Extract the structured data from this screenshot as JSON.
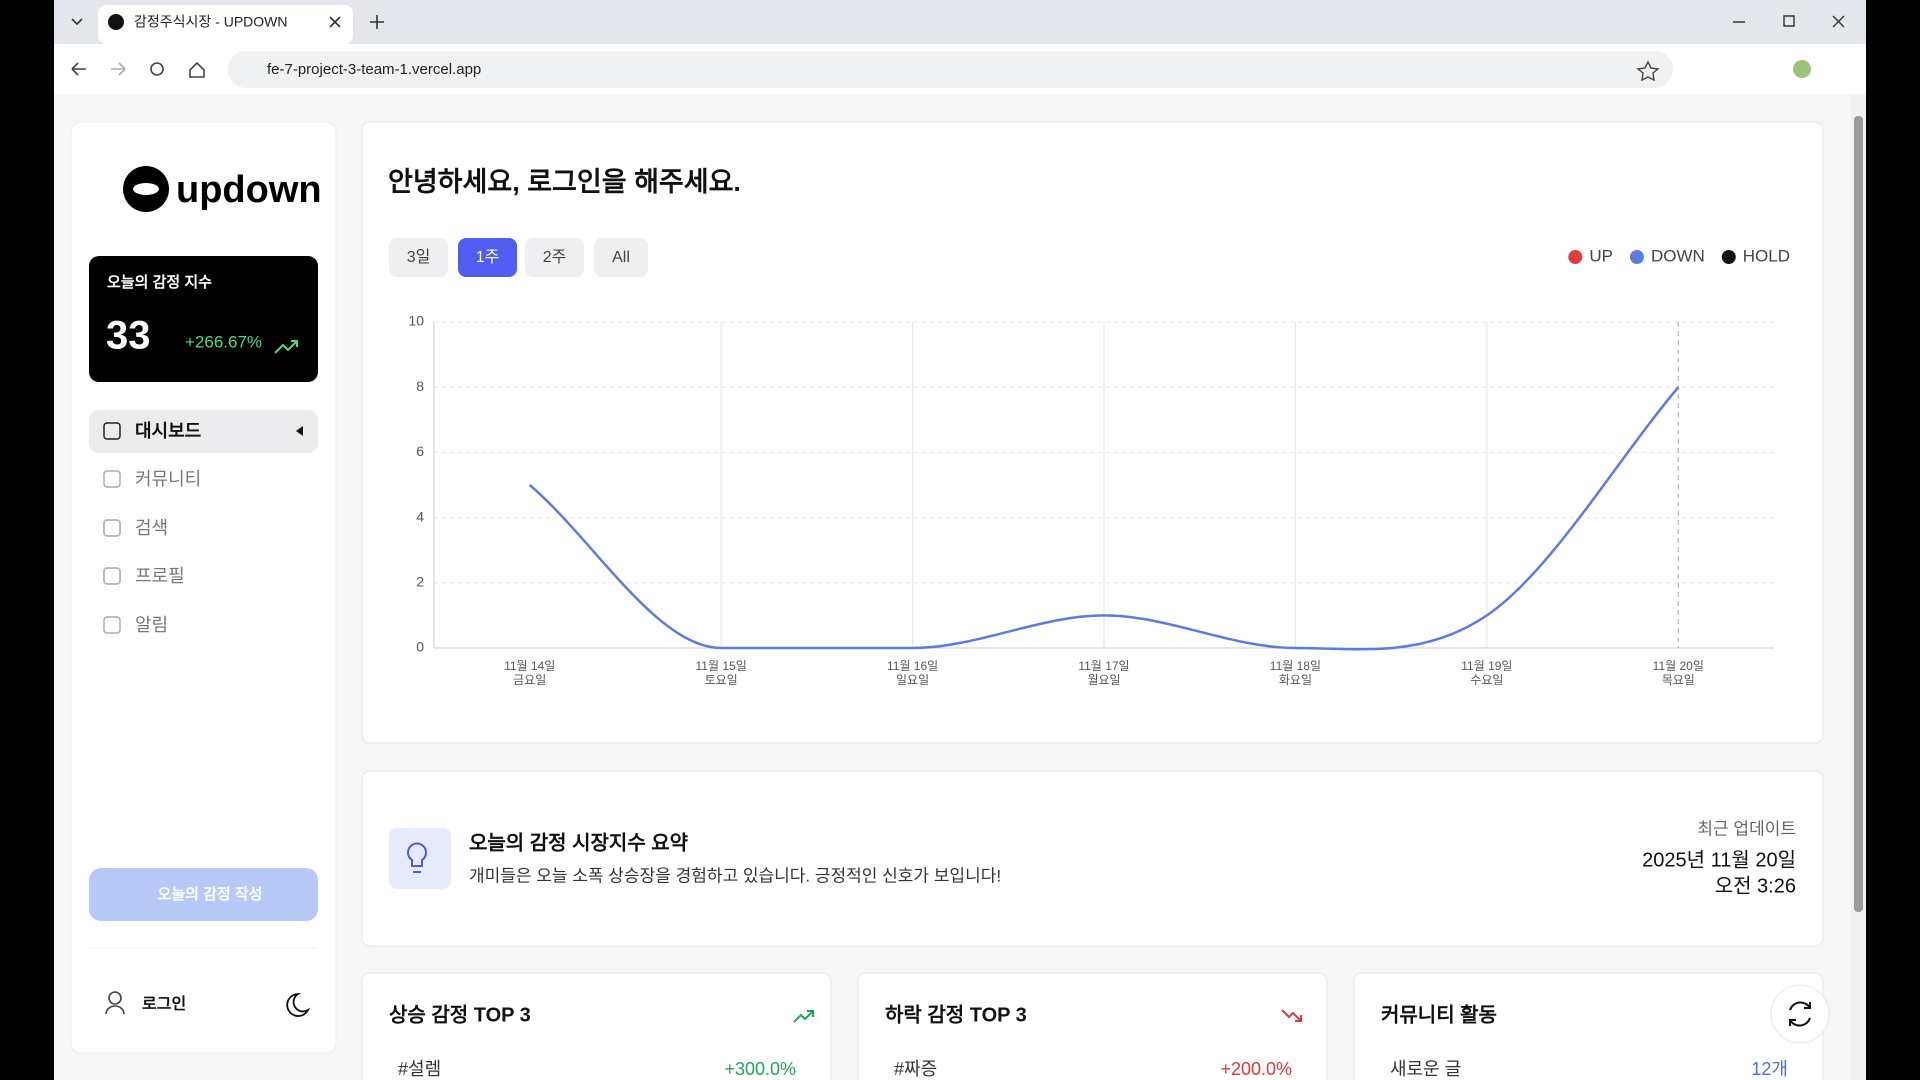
{
  "browser": {
    "tab_title": "감정주식시장 - UPDOWN",
    "url": "fe-7-project-3-team-1.vercel.app"
  },
  "sidebar": {
    "logo": "updown",
    "index_card": {
      "title": "오늘의 감정 지수",
      "value": 33,
      "change": "+266.67%"
    },
    "nav": [
      "대시보드",
      "커뮤니티",
      "검색",
      "프로필",
      "알림"
    ],
    "active_nav": 0,
    "write_button": "오늘의 감정 작성",
    "login": "로그인"
  },
  "main": {
    "greeting": "안녕하세요, 로그인을 해주세요.",
    "ranges": [
      "3일",
      "1주",
      "2주",
      "All"
    ],
    "active_range": 1,
    "summary": {
      "title": "오늘의 감정 시장지수 요약",
      "text": "개미들은 오늘 소폭 상승장을 경험하고 있습니다. 긍정적인 신호가 보입니다!",
      "updated_label": "최근 업데이트",
      "date": "2025년 11월 20일",
      "time": "오전 3:26"
    },
    "cards": [
      {
        "title": "상승 감정 TOP 3",
        "rows": [
          {
            "label": "#설렘",
            "value": "+300.0%"
          }
        ]
      },
      {
        "title": "하락 감정 TOP 3",
        "rows": [
          {
            "label": "#짜증",
            "value": "+200.0%"
          }
        ]
      },
      {
        "title": "커뮤니티 활동",
        "rows": [
          {
            "label": "새로운 글",
            "value": "12개"
          }
        ]
      }
    ]
  },
  "chart_data": {
    "type": "line",
    "categories": [
      "11월 14일",
      "11월 15일",
      "11월 16일",
      "11월 17일",
      "11월 18일",
      "11월 19일",
      "11월 20일"
    ],
    "category_sublabels": [
      "금요일",
      "토요일",
      "일요일",
      "월요일",
      "화요일",
      "수요일",
      "목요일"
    ],
    "series": [
      {
        "name": "UP",
        "color": "#e03e3e",
        "values": [
          null,
          null,
          null,
          null,
          null,
          null,
          null
        ]
      },
      {
        "name": "DOWN",
        "color": "#5b7be0",
        "values": [
          5,
          0,
          0,
          1,
          0,
          1,
          8
        ]
      },
      {
        "name": "HOLD",
        "color": "#111111",
        "values": [
          null,
          null,
          null,
          null,
          null,
          null,
          null
        ]
      }
    ],
    "ylim": [
      0,
      10
    ],
    "yticks": [
      0,
      2,
      4,
      6,
      8,
      10
    ],
    "grid": true,
    "legend": "top-right"
  }
}
